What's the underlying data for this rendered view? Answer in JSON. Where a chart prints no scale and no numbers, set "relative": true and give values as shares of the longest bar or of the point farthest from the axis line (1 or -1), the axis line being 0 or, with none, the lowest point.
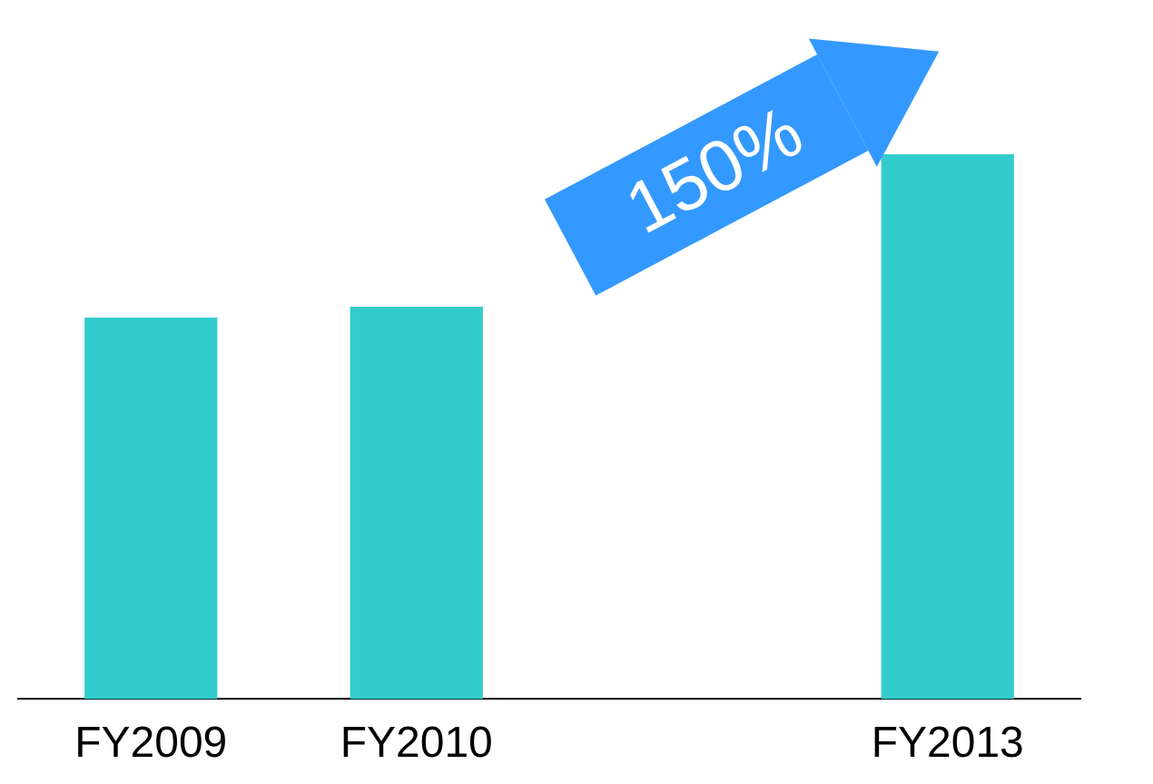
{
  "chart_data": {
    "type": "bar",
    "relative": true,
    "categories": [
      "FY2009",
      "FY2010",
      null,
      "FY2013"
    ],
    "values": [
      0.7,
      0.72,
      null,
      1
    ],
    "color": "#33cccc",
    "annotations": [
      "150%"
    ],
    "grid": false,
    "legend": false
  }
}
